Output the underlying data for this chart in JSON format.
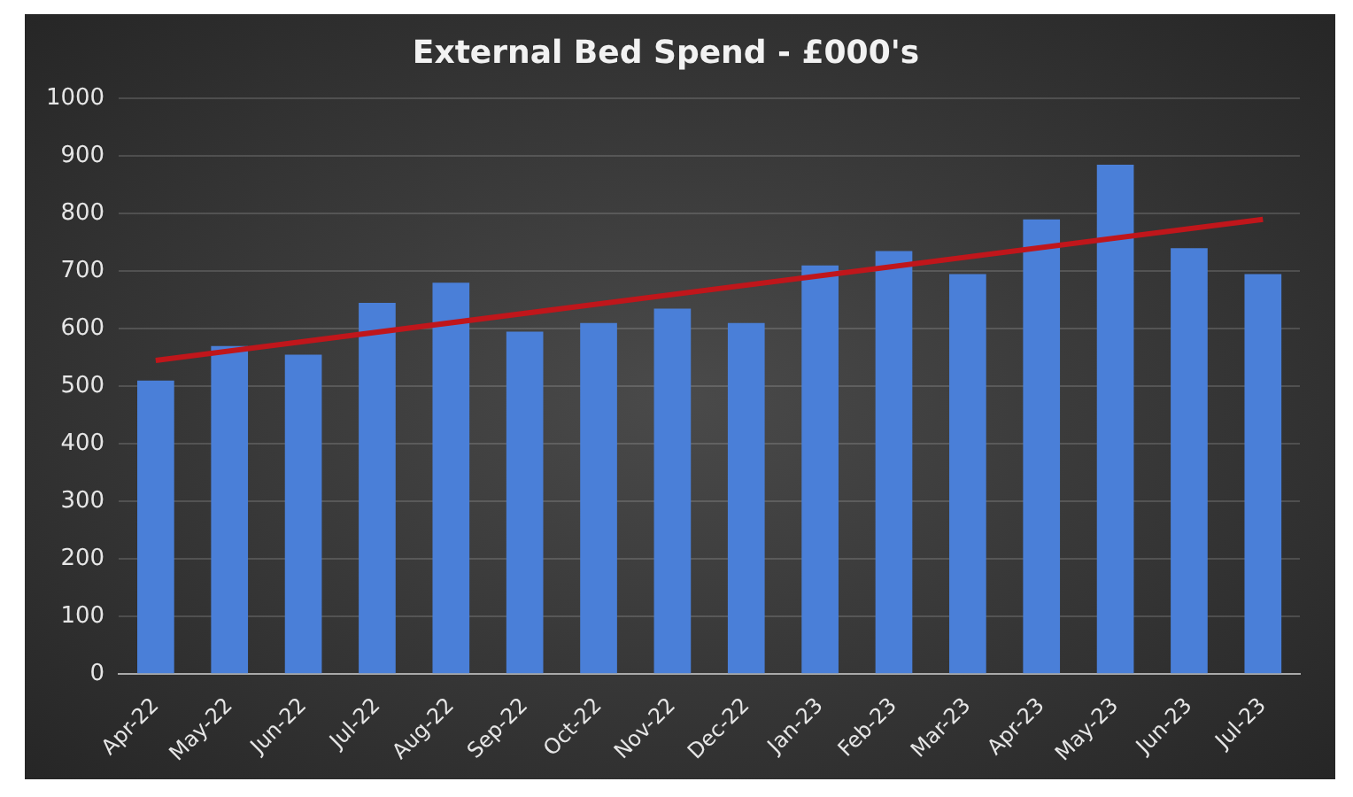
{
  "chart_data": {
    "type": "bar",
    "title": "External Bed Spend - £000's",
    "categories": [
      "Apr-22",
      "May-22",
      "Jun-22",
      "Jul-22",
      "Aug-22",
      "Sep-22",
      "Oct-22",
      "Nov-22",
      "Dec-22",
      "Jan-23",
      "Feb-23",
      "Mar-23",
      "Apr-23",
      "May-23",
      "Jun-23",
      "Jul-23"
    ],
    "series": [
      {
        "color": "#4a7fd8",
        "values": [
          510,
          570,
          555,
          645,
          680,
          595,
          610,
          635,
          610,
          710,
          735,
          695,
          790,
          885,
          740,
          695
        ]
      },
      {
        "type": "line",
        "color": "#c0161b",
        "x": [
          "Apr-22",
          "Jul-23"
        ],
        "values": [
          545,
          790
        ]
      }
    ],
    "ylim": [
      0,
      1000
    ],
    "yticks": [
      0,
      100,
      200,
      300,
      400,
      500,
      600,
      700,
      800,
      900,
      1000
    ],
    "grid": "y",
    "legend": false,
    "marker": "none"
  }
}
